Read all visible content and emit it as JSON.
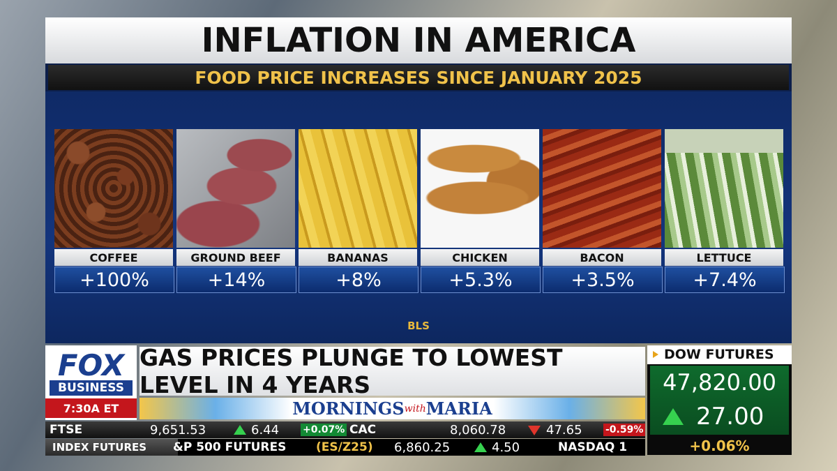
{
  "header": {
    "title": "INFLATION IN AMERICA",
    "subtitle": "FOOD PRICE INCREASES SINCE JANUARY 2025"
  },
  "items": [
    {
      "label": "COFFEE",
      "value": "+100%"
    },
    {
      "label": "GROUND BEEF",
      "value": "+14%"
    },
    {
      "label": "BANANAS",
      "value": "+8%"
    },
    {
      "label": "CHICKEN",
      "value": "+5.3%"
    },
    {
      "label": "BACON",
      "value": "+3.5%"
    },
    {
      "label": "LETTUCE",
      "value": "+7.4%"
    }
  ],
  "source": "BLS",
  "lower_third": {
    "logo_top": "FOX",
    "logo_bottom": "BUSINESS",
    "time": "7:30A ET",
    "headline": "GAS PRICES PLUNGE TO LOWEST LEVEL IN 4 YEARS",
    "show": [
      "MORNINGS",
      "with",
      "MARIA"
    ]
  },
  "dow": {
    "label": "DOW FUTURES",
    "value": "47,820.00",
    "change": "27.00",
    "percent": "+0.06%"
  },
  "ticker": {
    "row1": [
      {
        "name": "FTSE",
        "value": "9,651.53",
        "change": "6.44",
        "percent": "+0.07%"
      },
      {
        "name": "CAC",
        "value": "8,060.78",
        "change": "47.65",
        "percent": "-0.59%"
      }
    ],
    "row2": {
      "label": "INDEX FUTURES",
      "name": "&P 500 FUTURES",
      "symbol": "(ES/Z25)",
      "value": "6,860.25",
      "change": "4.50",
      "next": "NASDAQ 1"
    }
  }
}
